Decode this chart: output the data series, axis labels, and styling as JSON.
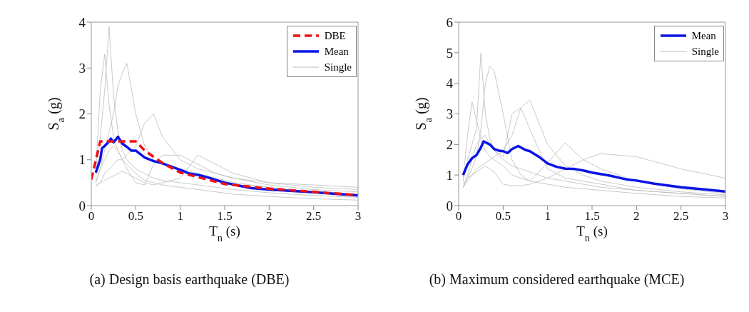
{
  "chart_data": [
    {
      "type": "line",
      "title": "(a) Design basis earthquake (DBE)",
      "xlabel": "T$_{n}$ (s)",
      "ylabel": "S$_{a}$ (g)",
      "xlim": [
        0,
        3
      ],
      "xticks": [
        0,
        0.5,
        1,
        1.5,
        2,
        2.5,
        3
      ],
      "ylim": [
        0,
        4
      ],
      "yticks": [
        0,
        1,
        2,
        3,
        4
      ],
      "legend": "top right",
      "x": [
        0.05,
        0.1,
        0.15,
        0.2,
        0.25,
        0.3,
        0.35,
        0.4,
        0.5,
        0.6,
        0.7,
        0.8,
        1,
        1.2,
        1.4,
        1.6,
        2,
        2.5,
        3
      ],
      "series": [
        {
          "name": "DBE",
          "color": "#ee1111",
          "line_style": "dashed",
          "x": [
            0,
            0.1,
            0.5,
            0.6,
            0.8,
            1,
            1.5,
            2,
            3
          ],
          "values": [
            0.57,
            1.4,
            1.4,
            1.2,
            0.93,
            0.72,
            0.47,
            0.37,
            0.23
          ]
        },
        {
          "name": "Mean",
          "color": "#0a14e6",
          "x": [
            0.05,
            0.1,
            0.12,
            0.15,
            0.2,
            0.22,
            0.25,
            0.28,
            0.3,
            0.35,
            0.4,
            0.45,
            0.5,
            0.6,
            0.7,
            0.8,
            0.9,
            1,
            1.1,
            1.2,
            1.3,
            1.5,
            1.7,
            1.8,
            2,
            2.5,
            3
          ],
          "values": [
            0.72,
            1.0,
            1.25,
            1.3,
            1.4,
            1.46,
            1.38,
            1.45,
            1.5,
            1.35,
            1.28,
            1.2,
            1.2,
            1.05,
            0.97,
            0.92,
            0.85,
            0.78,
            0.7,
            0.67,
            0.62,
            0.5,
            0.42,
            0.38,
            0.35,
            0.29,
            0.22
          ]
        },
        {
          "name": "Single",
          "color": "#bbbbbb",
          "values": [
            0.6,
            1.5,
            2.5,
            3.9,
            2.4,
            1.6,
            1.2,
            1.0,
            0.8,
            0.7,
            0.6,
            0.55,
            0.5,
            0.45,
            0.4,
            0.35,
            0.28,
            0.22,
            0.18
          ]
        },
        {
          "color": "#bbbbbb",
          "values": [
            0.5,
            0.8,
            1.2,
            1.6,
            2.0,
            2.6,
            2.9,
            3.1,
            2.0,
            1.3,
            1.0,
            0.9,
            0.8,
            0.7,
            0.6,
            0.5,
            0.4,
            0.3,
            0.25
          ]
        },
        {
          "color": "#bbbbbb",
          "values": [
            0.4,
            0.5,
            0.7,
            0.8,
            0.9,
            1.0,
            1.0,
            1.1,
            1.3,
            1.8,
            2.0,
            1.5,
            1.0,
            0.8,
            0.7,
            0.6,
            0.45,
            0.35,
            0.3
          ]
        },
        {
          "color": "#bbbbbb",
          "values": [
            0.7,
            2.5,
            3.3,
            2.2,
            1.5,
            1.2,
            1.0,
            0.9,
            0.7,
            0.55,
            0.5,
            0.45,
            0.4,
            0.35,
            0.3,
            0.25,
            0.2,
            0.15,
            0.12
          ]
        },
        {
          "color": "#bbbbbb",
          "values": [
            0.45,
            0.5,
            0.55,
            0.6,
            0.65,
            0.7,
            0.75,
            0.7,
            0.6,
            0.5,
            0.45,
            0.5,
            0.6,
            1.1,
            0.9,
            0.7,
            0.5,
            0.4,
            0.35
          ]
        },
        {
          "color": "#bbbbbb",
          "values": [
            0.5,
            0.8,
            1.0,
            1.2,
            1.3,
            1.2,
            1.0,
            0.8,
            0.5,
            0.45,
            0.9,
            1.1,
            1.1,
            0.9,
            0.7,
            0.6,
            0.5,
            0.45,
            0.4
          ]
        }
      ]
    },
    {
      "type": "line",
      "title": "(b) Maximum considered earthquake (MCE)",
      "xlabel": "T$_{n}$ (s)",
      "ylabel": "S$_{a}$ (g)",
      "xlim": [
        0,
        3
      ],
      "xticks": [
        0,
        0.5,
        1,
        1.5,
        2,
        2.5,
        3
      ],
      "ylim": [
        0,
        6
      ],
      "yticks": [
        0,
        1,
        2,
        3,
        4,
        5,
        6
      ],
      "legend": "top right",
      "x": [
        0.05,
        0.1,
        0.15,
        0.2,
        0.25,
        0.3,
        0.35,
        0.4,
        0.5,
        0.6,
        0.7,
        0.8,
        1,
        1.2,
        1.4,
        1.6,
        2,
        2.5,
        3
      ],
      "series": [
        {
          "name": "Mean",
          "color": "#0a14e6",
          "x": [
            0.05,
            0.1,
            0.15,
            0.2,
            0.25,
            0.28,
            0.35,
            0.4,
            0.45,
            0.5,
            0.55,
            0.6,
            0.67,
            0.75,
            0.8,
            0.9,
            1,
            1.1,
            1.2,
            1.3,
            1.4,
            1.5,
            1.7,
            1.9,
            2,
            2.2,
            2.5,
            2.8,
            3
          ],
          "values": [
            1.0,
            1.35,
            1.55,
            1.65,
            1.9,
            2.1,
            2.0,
            1.85,
            1.8,
            1.78,
            1.72,
            1.85,
            1.95,
            1.82,
            1.78,
            1.6,
            1.38,
            1.27,
            1.21,
            1.2,
            1.15,
            1.08,
            0.98,
            0.85,
            0.82,
            0.72,
            0.6,
            0.52,
            0.46
          ]
        },
        {
          "name": "Single",
          "color": "#bbbbbb",
          "values": [
            0.8,
            1.5,
            2.0,
            2.5,
            5.0,
            3.0,
            2.2,
            1.8,
            1.5,
            1.3,
            1.2,
            1.1,
            0.9,
            0.8,
            0.7,
            0.6,
            0.5,
            0.4,
            0.3
          ]
        },
        {
          "color": "#bbbbbb",
          "values": [
            0.6,
            0.9,
            1.2,
            1.6,
            2.5,
            4.0,
            4.55,
            4.4,
            3.0,
            1.5,
            1.0,
            0.8,
            0.7,
            0.6,
            0.55,
            0.5,
            0.4,
            0.3,
            0.25
          ]
        },
        {
          "color": "#bbbbbb",
          "values": [
            0.7,
            0.9,
            1.0,
            1.2,
            1.3,
            1.4,
            1.5,
            1.6,
            1.8,
            2.3,
            3.2,
            3.45,
            2.0,
            1.3,
            1.0,
            0.8,
            0.6,
            0.45,
            0.35
          ]
        },
        {
          "color": "#bbbbbb",
          "values": [
            0.6,
            1.0,
            1.5,
            2.0,
            2.2,
            2.3,
            2.0,
            1.8,
            1.6,
            3.0,
            3.2,
            2.5,
            1.2,
            0.9,
            0.8,
            0.7,
            0.5,
            0.4,
            0.3
          ]
        },
        {
          "color": "#bbbbbb",
          "values": [
            0.6,
            0.8,
            1.0,
            1.1,
            1.2,
            1.3,
            1.2,
            1.1,
            0.7,
            0.65,
            0.65,
            0.7,
            0.9,
            1.2,
            1.5,
            1.7,
            1.6,
            1.2,
            0.9
          ]
        },
        {
          "color": "#bbbbbb",
          "values": [
            0.9,
            2.3,
            3.4,
            2.8,
            2.2,
            1.8,
            1.6,
            1.5,
            1.3,
            1.0,
            0.9,
            0.8,
            1.4,
            2.05,
            1.5,
            1.2,
            0.8,
            0.55,
            0.4
          ]
        }
      ]
    }
  ]
}
